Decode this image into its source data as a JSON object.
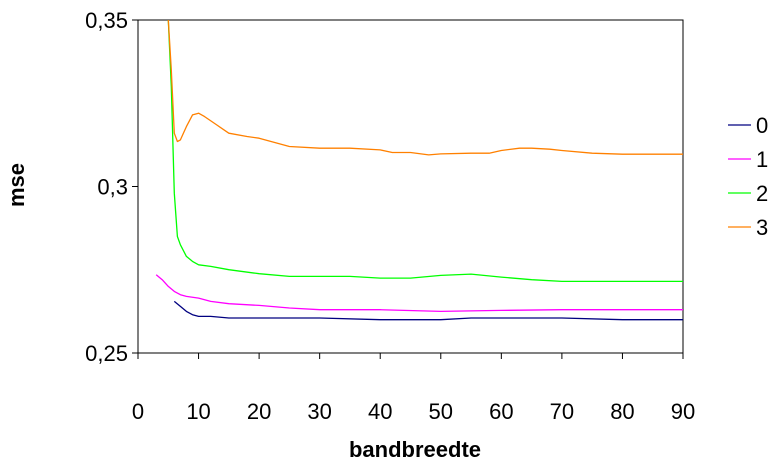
{
  "chart_data": {
    "type": "line",
    "title": "",
    "xlabel": "bandbreedte",
    "ylabel": "mse",
    "xlim": [
      0,
      90
    ],
    "ylim": [
      0.25,
      0.35
    ],
    "xticks": [
      0,
      10,
      20,
      30,
      40,
      50,
      60,
      70,
      80,
      90
    ],
    "xtick_labels": [
      "0",
      "10",
      "20",
      "30",
      "40",
      "50",
      "60",
      "70",
      "80",
      "90"
    ],
    "yticks": [
      0.25,
      0.3,
      0.35
    ],
    "ytick_labels": [
      "0,25",
      "0,3",
      "0,35"
    ],
    "grid": false,
    "legend_position": "right",
    "series": [
      {
        "name": "0",
        "color": "#000080",
        "x": [
          6,
          7,
          8,
          9,
          10,
          12,
          15,
          20,
          30,
          40,
          50,
          55,
          60,
          70,
          80,
          90
        ],
        "y": [
          0.2655,
          0.264,
          0.2625,
          0.2615,
          0.261,
          0.261,
          0.2605,
          0.2605,
          0.2605,
          0.26,
          0.26,
          0.2605,
          0.2605,
          0.2605,
          0.26,
          0.26
        ]
      },
      {
        "name": "1",
        "color": "#FF00FF",
        "x": [
          3,
          4,
          5,
          6,
          7,
          8,
          10,
          12,
          15,
          20,
          25,
          30,
          40,
          50,
          60,
          70,
          80,
          90
        ],
        "y": [
          0.2735,
          0.272,
          0.27,
          0.2685,
          0.2675,
          0.267,
          0.2665,
          0.2655,
          0.2648,
          0.2643,
          0.2635,
          0.263,
          0.263,
          0.2625,
          0.2628,
          0.263,
          0.263,
          0.263
        ]
      },
      {
        "name": "2",
        "color": "#00FF00",
        "x": [
          5,
          5.5,
          6,
          6.5,
          7,
          8,
          9,
          10,
          12,
          15,
          20,
          25,
          30,
          35,
          40,
          45,
          50,
          55,
          60,
          65,
          70,
          80,
          90
        ],
        "y": [
          0.35,
          0.33,
          0.298,
          0.285,
          0.2825,
          0.279,
          0.2775,
          0.2765,
          0.276,
          0.275,
          0.2738,
          0.273,
          0.273,
          0.273,
          0.2725,
          0.2725,
          0.2733,
          0.2737,
          0.2728,
          0.272,
          0.2715,
          0.2715,
          0.2715
        ]
      },
      {
        "name": "3",
        "color": "#FF8000",
        "x": [
          5,
          5.5,
          6,
          6.5,
          7,
          8,
          9,
          10,
          11,
          13,
          15,
          18,
          20,
          25,
          30,
          35,
          40,
          42,
          45,
          48,
          50,
          55,
          58,
          60,
          63,
          65,
          68,
          70,
          75,
          80,
          85,
          90
        ],
        "y": [
          0.35,
          0.335,
          0.316,
          0.3135,
          0.314,
          0.318,
          0.3215,
          0.322,
          0.321,
          0.3185,
          0.316,
          0.315,
          0.3145,
          0.312,
          0.3115,
          0.3115,
          0.311,
          0.3102,
          0.3102,
          0.3095,
          0.3098,
          0.31,
          0.31,
          0.3108,
          0.3115,
          0.3115,
          0.3112,
          0.3108,
          0.31,
          0.3097,
          0.3097,
          0.3097
        ]
      }
    ]
  }
}
